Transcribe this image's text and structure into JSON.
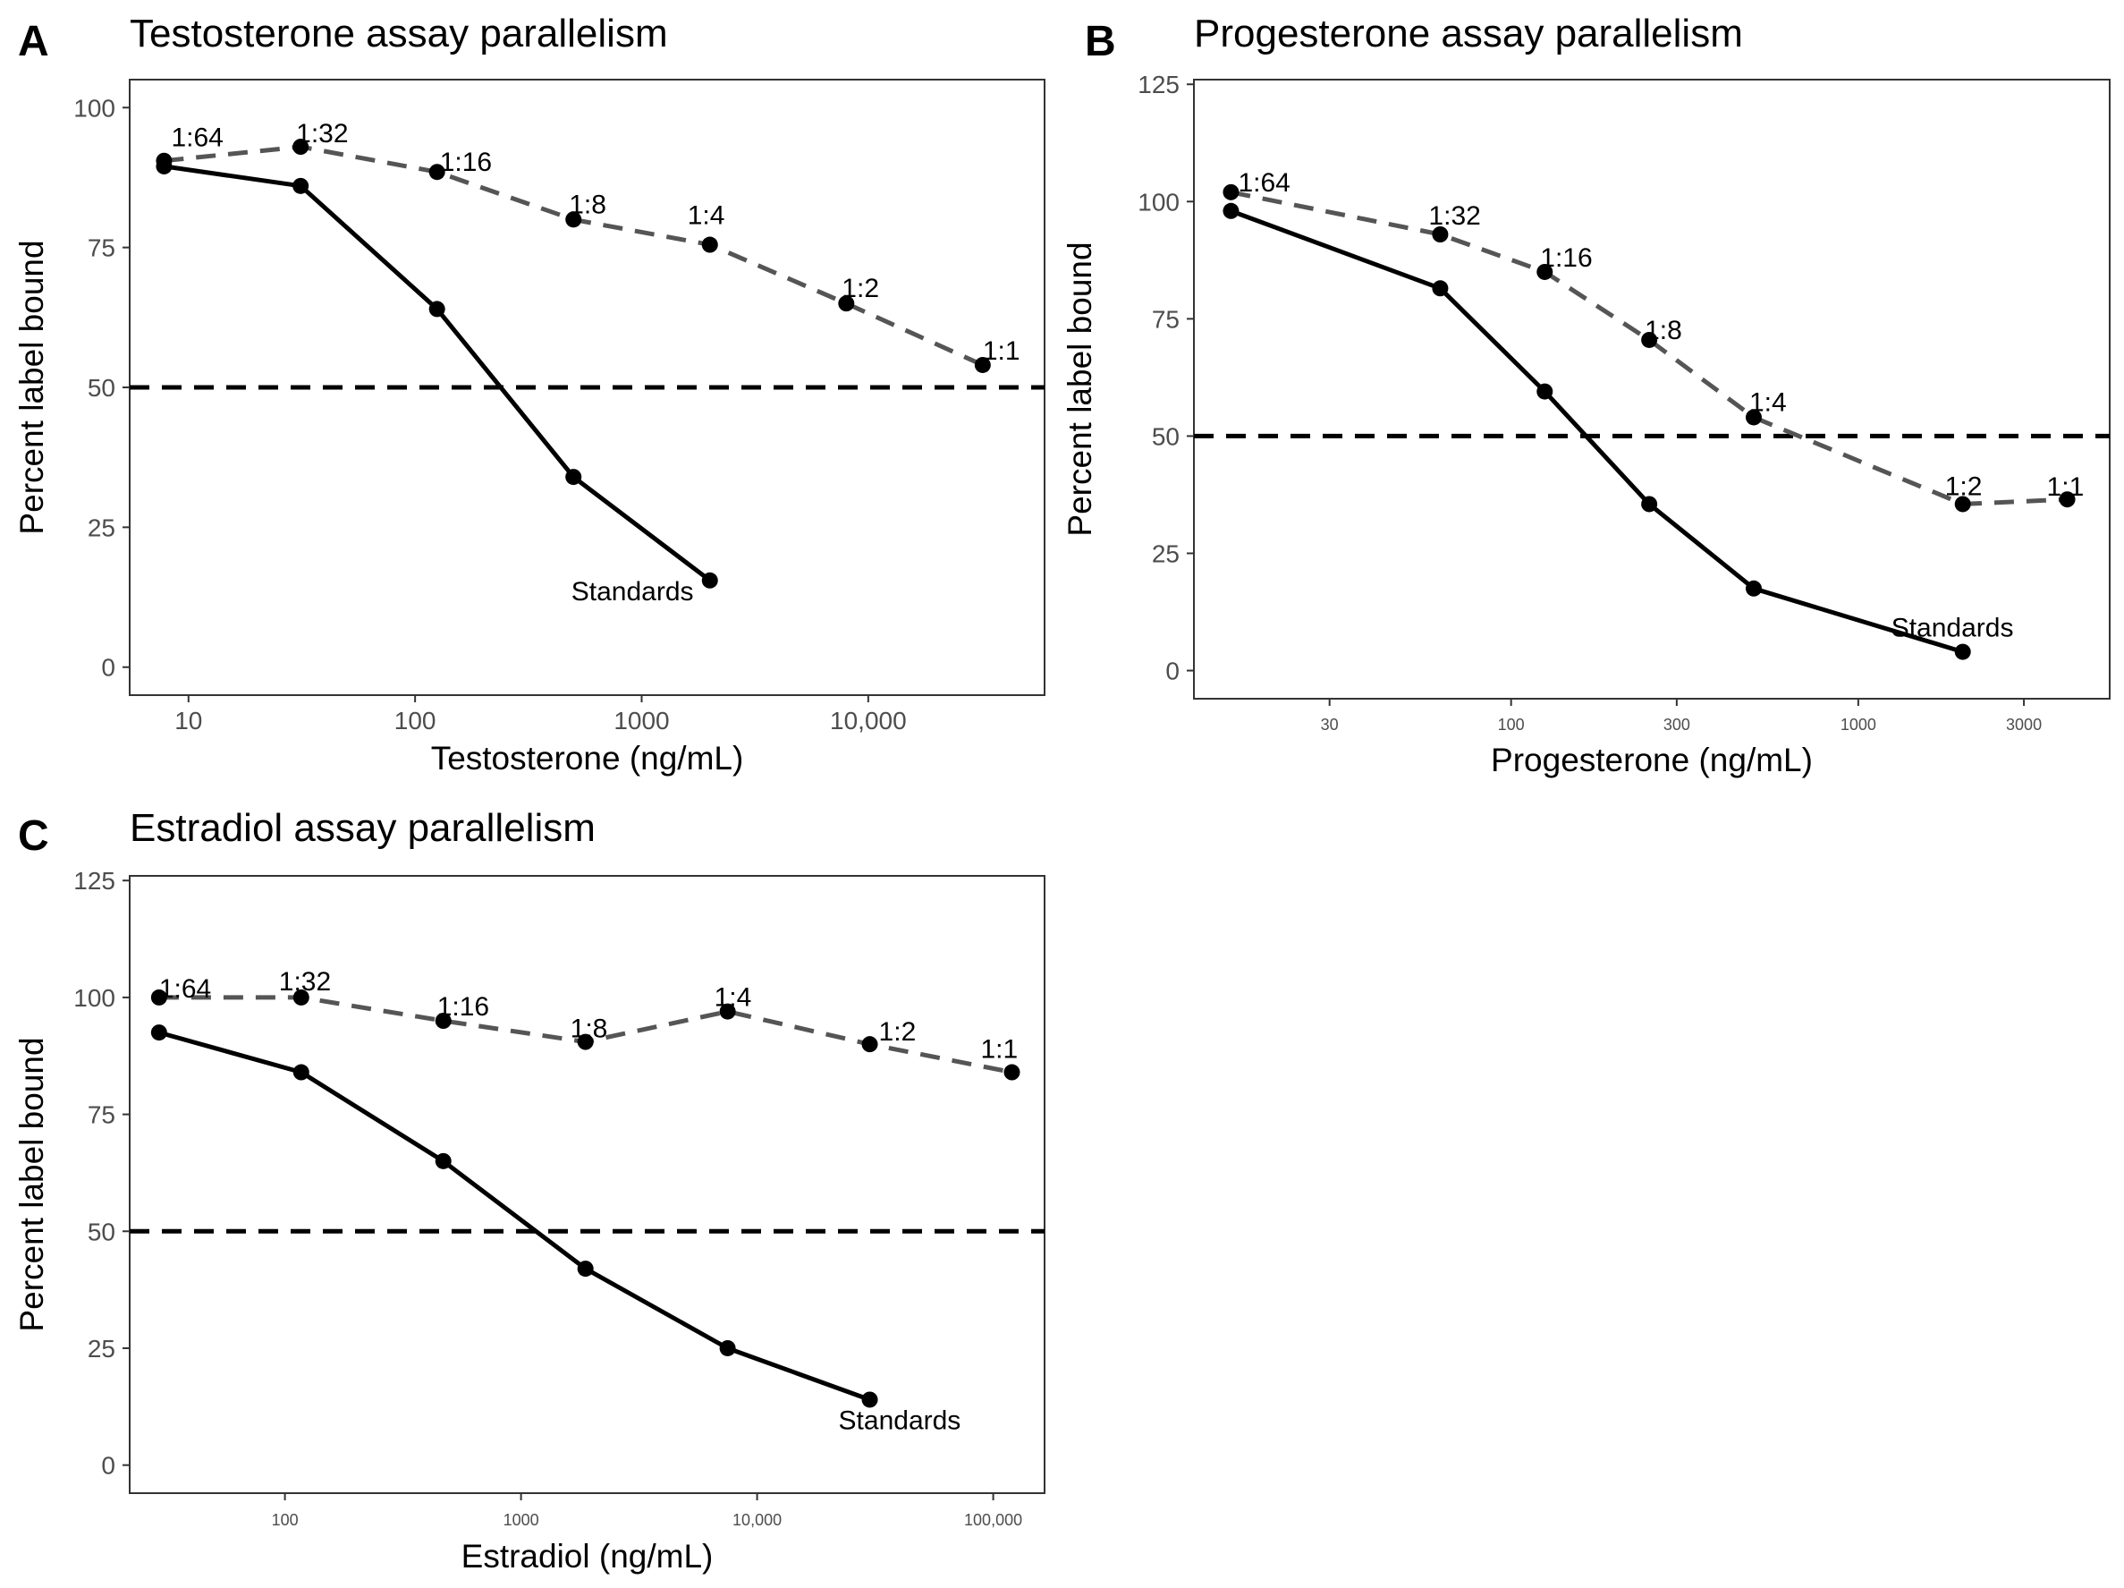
{
  "chart_data": [
    {
      "type": "line",
      "panel": "A",
      "title": "Testosterone assay parallelism",
      "xlabel": "Testosterone (ng/mL)",
      "ylabel": "Percent label bound",
      "x_scale": "log10",
      "xlim": [
        5.5,
        60000
      ],
      "ylim": [
        -5,
        105
      ],
      "x_ticks": [
        10,
        100,
        1000,
        10000
      ],
      "x_tick_labels": [
        "10",
        "100",
        "1000",
        "10,000"
      ],
      "y_ticks": [
        0,
        25,
        50,
        75,
        100
      ],
      "y_tick_labels": [
        "0",
        "25",
        "50",
        "75",
        "100"
      ],
      "reference_line_y": 50,
      "grid": false,
      "series": [
        {
          "style": "solid",
          "color": "#000000",
          "x": [
            7.8,
            31.25,
            125,
            500,
            2000
          ],
          "y": [
            89.5,
            86,
            64,
            34,
            15.5
          ],
          "point_labels": [
            "",
            "",
            "",
            "",
            "Standards"
          ]
        },
        {
          "style": "dashed",
          "color": "#555555",
          "x": [
            7.8,
            31.25,
            125,
            500,
            2000,
            8000,
            32000
          ],
          "y": [
            90.5,
            93,
            88.5,
            80,
            75.5,
            65,
            54
          ],
          "point_labels": [
            "1:64",
            "1:32",
            "1:16",
            "1:8",
            "1:4",
            "1:2",
            "1:1"
          ]
        }
      ]
    },
    {
      "type": "line",
      "panel": "B",
      "title": "Progesterone assay parallelism",
      "xlabel": "Progesterone (ng/mL)",
      "ylabel": "Percent label bound",
      "x_scale": "log10",
      "xlim": [
        12.2,
        5300
      ],
      "ylim": [
        -6,
        126
      ],
      "x_ticks": [
        30,
        100,
        300,
        1000,
        3000
      ],
      "x_tick_labels": [
        "30",
        "100",
        "300",
        "1000",
        "3000"
      ],
      "y_ticks": [
        0,
        25,
        50,
        75,
        100,
        125
      ],
      "y_tick_labels": [
        "0",
        "25",
        "50",
        "75",
        "100",
        "125"
      ],
      "reference_line_y": 50,
      "grid": false,
      "series": [
        {
          "style": "solid",
          "color": "#000000",
          "x": [
            15.6,
            62.5,
            125,
            250,
            500,
            2000
          ],
          "y": [
            98,
            81.5,
            59.5,
            35.5,
            17.5,
            4
          ],
          "point_labels": [
            "",
            "",
            "",
            "",
            "",
            "Standards"
          ]
        },
        {
          "style": "dashed",
          "color": "#555555",
          "x": [
            15.6,
            62.5,
            125,
            250,
            500,
            2000,
            4000
          ],
          "y": [
            102,
            93,
            85,
            70.5,
            54,
            35.5,
            36.5
          ],
          "point_labels": [
            "1:64",
            "1:32",
            "1:16",
            "1:8",
            "1:4",
            "1:2",
            "1:1"
          ]
        }
      ]
    },
    {
      "type": "line",
      "panel": "C",
      "title": "Estradiol assay parallelism",
      "xlabel": "Estradiol (ng/mL)",
      "ylabel": "Percent label bound",
      "x_scale": "log10",
      "xlim": [
        22,
        165000
      ],
      "ylim": [
        -6,
        126
      ],
      "x_ticks": [
        100,
        1000,
        10000,
        100000
      ],
      "x_tick_labels": [
        "100",
        "1000",
        "10,000",
        "100,000"
      ],
      "y_ticks": [
        0,
        25,
        50,
        75,
        100,
        125
      ],
      "y_tick_labels": [
        "0",
        "25",
        "50",
        "75",
        "100",
        "125"
      ],
      "reference_line_y": 50,
      "grid": false,
      "series": [
        {
          "style": "solid",
          "color": "#000000",
          "x": [
            29.3,
            117.2,
            468.75,
            1875,
            7500,
            30000
          ],
          "y": [
            92.5,
            84,
            65,
            42,
            25,
            14
          ],
          "point_labels": [
            "",
            "",
            "",
            "",
            "",
            "Standards"
          ]
        },
        {
          "style": "dashed",
          "color": "#555555",
          "x": [
            29.3,
            117.2,
            468.75,
            1875,
            7500,
            30000,
            120000
          ],
          "y": [
            100,
            100,
            95,
            90.5,
            97,
            90,
            84
          ],
          "point_labels": [
            "1:64",
            "1:32",
            "1:16",
            "1:8",
            "1:4",
            "1:2",
            "1:1"
          ]
        }
      ]
    }
  ]
}
